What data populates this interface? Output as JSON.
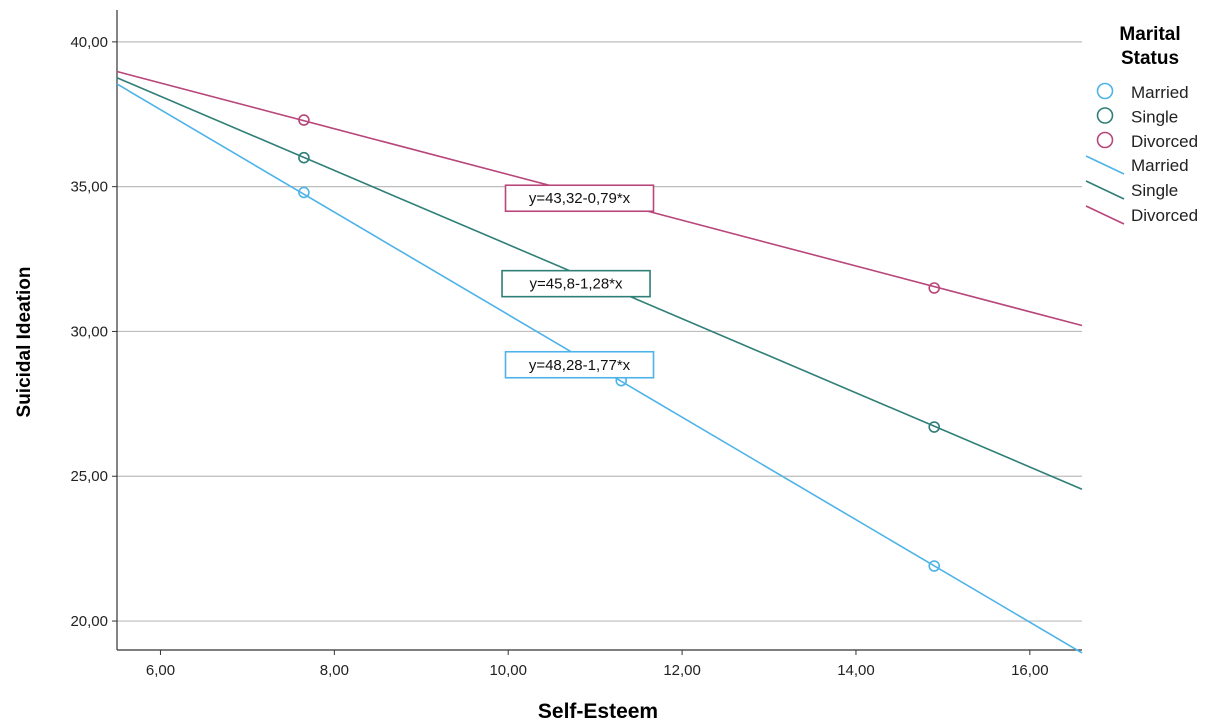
{
  "chart_data": {
    "type": "line",
    "xlabel": "Self-Esteem",
    "ylabel": "Suicidal Ideation",
    "xlim": [
      5.5,
      16.6
    ],
    "ylim": [
      19.0,
      41.1
    ],
    "xticks": [
      "6,00",
      "8,00",
      "10,00",
      "12,00",
      "14,00",
      "16,00"
    ],
    "xtick_values": [
      6,
      8,
      10,
      12,
      14,
      16
    ],
    "yticks": [
      "20,00",
      "25,00",
      "30,00",
      "35,00",
      "40,00"
    ],
    "ytick_values": [
      20,
      25,
      30,
      35,
      40
    ],
    "grid": "horizontal",
    "legend": {
      "title_lines": [
        "Marital",
        "Status"
      ],
      "marker_entries": [
        "Married",
        "Single",
        "Divorced"
      ],
      "line_entries": [
        "Married",
        "Single",
        "Divorced"
      ],
      "placement": "right"
    },
    "series": [
      {
        "name": "Married",
        "color": "#4db3e8",
        "equation": "y=48,28-1,77*x",
        "intercept": 48.28,
        "slope": -1.77,
        "points": [
          [
            7.65,
            34.8
          ],
          [
            11.3,
            28.3
          ],
          [
            14.9,
            21.9
          ]
        ],
        "label_at": [
          10.82,
          28.85
        ]
      },
      {
        "name": "Single",
        "color": "#2f7f78",
        "equation": "y=45,8-1,28*x",
        "intercept": 45.8,
        "slope": -1.28,
        "points": [
          [
            7.65,
            36.0
          ],
          [
            14.9,
            26.7
          ]
        ],
        "label_at": [
          10.78,
          31.65
        ]
      },
      {
        "name": "Divorced",
        "color": "#b8467a",
        "equation": "y=43,32-0,79*x",
        "intercept": 43.32,
        "slope": -0.79,
        "points": [
          [
            7.65,
            37.3
          ],
          [
            14.9,
            31.5
          ]
        ],
        "label_at": [
          10.82,
          34.6
        ]
      }
    ]
  }
}
